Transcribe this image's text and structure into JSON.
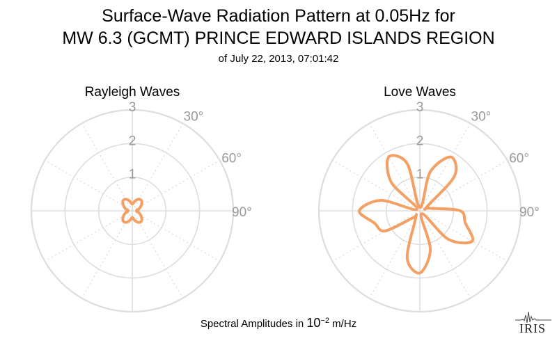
{
  "header": {
    "title_line1": "Surface-Wave Radiation Pattern at 0.05Hz for",
    "title_line2": "MW 6.3 (GCMT) PRINCE EDWARD ISLANDS REGION",
    "subtitle": "of July 22, 2013, 07:01:42"
  },
  "footer": {
    "prefix": "Spectral Amplitudes in ",
    "base": "10",
    "exponent": "−2",
    "suffix": " m/Hz"
  },
  "logo": {
    "text": "IRIS",
    "icon": "iris-seismograph-logo"
  },
  "colors": {
    "pattern": "#f4a064",
    "grid": "#dddddd",
    "tick_label": "#999999"
  },
  "chart_data": [
    {
      "type": "polar-line",
      "title": "Rayleigh Waves",
      "rlim": [
        0,
        3
      ],
      "r_ticks": [
        "1",
        "2",
        "3"
      ],
      "angle_labels": [
        "30°",
        "60°",
        "90°"
      ],
      "grid": true,
      "angles_deg": [
        0,
        15,
        30,
        45,
        60,
        75,
        90,
        105,
        120,
        135,
        150,
        165,
        180,
        195,
        210,
        225,
        240,
        255,
        270,
        285,
        300,
        315,
        330,
        345
      ],
      "series": [
        {
          "values": [
            0.2,
            0.3,
            0.4,
            0.4,
            0.3,
            0.2,
            0.12,
            0.2,
            0.3,
            0.4,
            0.4,
            0.3,
            0.2,
            0.3,
            0.4,
            0.4,
            0.3,
            0.2,
            0.12,
            0.2,
            0.3,
            0.4,
            0.4,
            0.3
          ]
        }
      ]
    },
    {
      "type": "polar-line",
      "title": "Love Waves",
      "rlim": [
        0,
        3
      ],
      "r_ticks": [
        "1",
        "2",
        "3"
      ],
      "angle_labels": [
        "30°",
        "60°",
        "90°"
      ],
      "grid": true,
      "angles_deg": [
        0,
        15,
        30,
        45,
        60,
        75,
        90,
        105,
        120,
        135,
        150,
        165,
        180,
        195,
        210,
        225,
        240,
        255,
        270,
        285,
        300,
        315,
        330,
        345
      ],
      "series": [
        {
          "values": [
            0.1,
            1.2,
            1.85,
            1.45,
            0.25,
            0.3,
            1.2,
            1.4,
            1.8,
            1.2,
            0.1,
            1.2,
            1.85,
            1.45,
            0.25,
            0.3,
            1.2,
            1.4,
            1.8,
            1.2,
            0.1,
            1.2,
            1.85,
            1.45
          ]
        }
      ]
    }
  ]
}
